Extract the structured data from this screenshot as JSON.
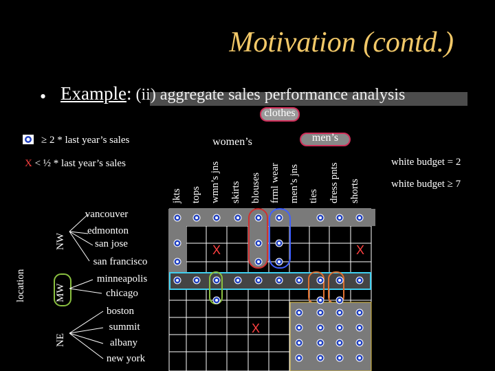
{
  "title": "Motivation (contd.)",
  "bullet": "•",
  "example": {
    "word": "Example",
    "colon": ":",
    "rest": " (ii) aggregate sales performance analysis"
  },
  "nodes": {
    "clothes": "clothes",
    "womens": "women’s",
    "mens": "men’s"
  },
  "legend": {
    "circle_text": "≥ 2 * last year’s sales",
    "x_prefix": "X",
    "x_text": " < ½ * last year’s sales"
  },
  "budgets": {
    "white2": "white budget = 2",
    "white7": "white budget ≥ 7"
  },
  "columns": [
    "jkts",
    "tops",
    "wmn’s jns",
    "skirts",
    "blouses",
    "frml wear",
    "men’s jns",
    "ties",
    "dress pnts",
    "shorts"
  ],
  "regions": {
    "location": "location",
    "nw": "NW",
    "mw": "MW",
    "ne": "NE"
  },
  "cities": [
    "vancouver",
    "edmonton",
    "san jose",
    "san francisco",
    "minneapolis",
    "chicago",
    "boston",
    "summit",
    "albany",
    "new york"
  ],
  "x_mark": "X",
  "colors": {
    "title": "#f2c868",
    "gray_box": "#7a7a7a",
    "red": "#d03030",
    "blue": "#4060ff",
    "green": "#8ac040",
    "orange": "#e07030",
    "cyan": "#40d0f0",
    "x": "#ff4040"
  }
}
